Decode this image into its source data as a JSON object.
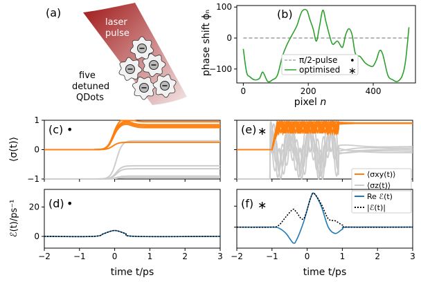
{
  "schematic": {
    "label": "(a)",
    "laser_line1": "laser",
    "laser_line2": "pulse",
    "qd_line1": "five",
    "qd_line2": "detuned",
    "qd_line3": "QDots"
  },
  "panel_b": {
    "label": "(b)",
    "ylabel": "phase shift ϕₙ",
    "xlabel_text": "pixel ",
    "xlabel_var": "n",
    "xticks": [
      0,
      200,
      400
    ],
    "yticks": [
      100,
      0,
      -100
    ],
    "legend": {
      "pi2_label": "π/2-pulse",
      "pi2_marker": "•",
      "opt_label": "optimised",
      "opt_marker": "∗"
    }
  },
  "panel_c": {
    "label": "(c)",
    "marker": "•",
    "ylabel": "⟨σ(t)⟩",
    "yticks": [
      1,
      0,
      -1
    ]
  },
  "panel_d": {
    "label": "(d)",
    "marker": "•",
    "ylabel": "ℰ(t)/ps⁻¹",
    "yticks": [
      20,
      0
    ]
  },
  "panel_e": {
    "label": "(e)",
    "marker": "∗",
    "legend": {
      "sxy": "⟨σxy(t)⟩",
      "sz": "⟨σz(t)⟩"
    }
  },
  "panel_f": {
    "label": "(f)",
    "marker": "∗",
    "legend": {
      "re": "Re ℰ(t)",
      "abs": "|ℰ(t)|"
    }
  },
  "time_axis": {
    "xlabel": "time t/ps",
    "xticks": [
      -2,
      -1,
      0,
      1,
      2,
      3
    ]
  },
  "colors": {
    "orange": "#ff7f0e",
    "gray": "#cccccc",
    "green": "#2ca02c",
    "blue": "#1f77b4",
    "dashed": "#aaaaaa",
    "laser": "#b22222"
  },
  "chart_data": [
    {
      "type": "line",
      "panel": "b",
      "xlim": [
        -20,
        530
      ],
      "ylim": [
        -145,
        105
      ],
      "series": [
        {
          "name": "π/2-pulse",
          "style": "dashed",
          "x": [
            0,
            512
          ],
          "y": [
            0,
            0
          ]
        },
        {
          "name": "optimised",
          "x": [
            0,
            10,
            20,
            35,
            50,
            60,
            75,
            90,
            105,
            120,
            135,
            150,
            165,
            180,
            195,
            205,
            215,
            225,
            235,
            245,
            255,
            265,
            275,
            290,
            305,
            315,
            325,
            335,
            345,
            360,
            375,
            390,
            400,
            410,
            420,
            430,
            445,
            460,
            475,
            490,
            500,
            510
          ],
          "y": [
            -35,
            -110,
            -125,
            -135,
            -130,
            -110,
            -140,
            -135,
            -120,
            -60,
            -20,
            10,
            40,
            85,
            90,
            60,
            30,
            -10,
            40,
            90,
            50,
            10,
            -20,
            -10,
            -30,
            10,
            30,
            10,
            -50,
            -60,
            -80,
            -90,
            -90,
            -70,
            -40,
            -55,
            -120,
            -135,
            -140,
            -120,
            -70,
            35
          ]
        }
      ]
    },
    {
      "type": "line",
      "panel": "c",
      "xlim": [
        -2,
        3
      ],
      "ylim": [
        -1,
        1
      ],
      "series": [
        {
          "name": "⟨σxy(t)⟩ (5 dots)",
          "color": "orange",
          "final": [
            0.95,
            0.85,
            0.8,
            0.75,
            0.25
          ]
        },
        {
          "name": "⟨σz(t)⟩ (5 dots)",
          "color": "gray",
          "final": [
            0.3,
            -0.55,
            -0.65,
            -0.9,
            -0.95
          ]
        }
      ]
    },
    {
      "type": "line",
      "panel": "d",
      "xlim": [
        -2,
        3
      ],
      "ylim": [
        -8,
        32
      ],
      "series": [
        {
          "name": "Re ℰ(t)",
          "x": [
            -2,
            -0.6,
            -0.3,
            0,
            0.3,
            0.6,
            3
          ],
          "y": [
            0,
            0,
            2,
            4,
            2,
            0,
            0
          ]
        },
        {
          "name": "|ℰ(t)|",
          "x": [
            -2,
            -0.6,
            -0.3,
            0,
            0.3,
            0.6,
            3
          ],
          "y": [
            0,
            0,
            2,
            4,
            2,
            0,
            0
          ]
        }
      ]
    },
    {
      "type": "line",
      "panel": "e",
      "xlim": [
        -2,
        3
      ],
      "ylim": [
        -1,
        1
      ],
      "series": [
        {
          "name": "⟨σxy(t)⟩",
          "color": "orange",
          "final": 0.9
        },
        {
          "name": "⟨σz(t)⟩",
          "color": "gray",
          "final": [
            0.0,
            -0.05,
            0.05,
            -0.1,
            0.1
          ]
        }
      ]
    },
    {
      "type": "line",
      "panel": "f",
      "xlim": [
        -2,
        3
      ],
      "ylim": [
        -20,
        36
      ],
      "series": [
        {
          "name": "Re ℰ(t)",
          "x": [
            -2,
            -1,
            -0.8,
            -0.6,
            -0.4,
            -0.3,
            -0.1,
            0.1,
            0.2,
            0.4,
            0.6,
            0.8,
            1.0,
            1.2,
            3
          ],
          "y": [
            0,
            0,
            -1,
            -6,
            -15,
            -12,
            5,
            28,
            32,
            20,
            0,
            -6,
            -2,
            0,
            0
          ]
        },
        {
          "name": "|ℰ(t)|",
          "x": [
            -2,
            -1,
            -0.8,
            -0.6,
            -0.4,
            -0.3,
            -0.1,
            0.1,
            0.2,
            0.4,
            0.6,
            0.8,
            1.0,
            1.2,
            3
          ],
          "y": [
            0,
            0,
            2,
            10,
            17,
            14,
            8,
            28,
            32,
            22,
            8,
            6,
            2,
            0,
            0
          ]
        }
      ]
    }
  ]
}
